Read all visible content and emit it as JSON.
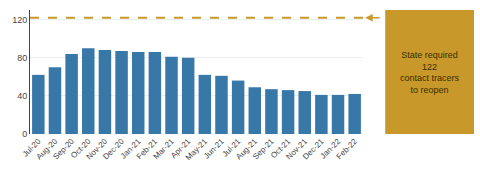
{
  "chart_data": {
    "type": "bar",
    "categories": [
      "Jul-20",
      "Aug-20",
      "Sep-20",
      "Oct-20",
      "Nov-20",
      "Dec-20",
      "Jan-21",
      "Feb-21",
      "Mar-21",
      "Apr-21",
      "May-21",
      "Jun-21",
      "Jul-21",
      "Aug-21",
      "Sep-21",
      "Oct-21",
      "Nov-21",
      "Dec-21",
      "Jan-22",
      "Feb-22"
    ],
    "values": [
      62,
      70,
      84,
      90,
      88,
      87,
      86,
      86,
      81,
      80,
      62,
      61,
      56,
      49,
      47,
      46,
      45,
      41,
      41,
      42
    ],
    "color": "#3878a8",
    "ylim": [
      0,
      130
    ],
    "yticks": [
      0,
      40,
      80,
      120
    ],
    "grid": true,
    "annotations": [
      {
        "text": "State required\n122\ncontact tracers\nto reopen",
        "y": 122,
        "color": "#C8992A",
        "text_color": "#3a2e00"
      }
    ]
  }
}
